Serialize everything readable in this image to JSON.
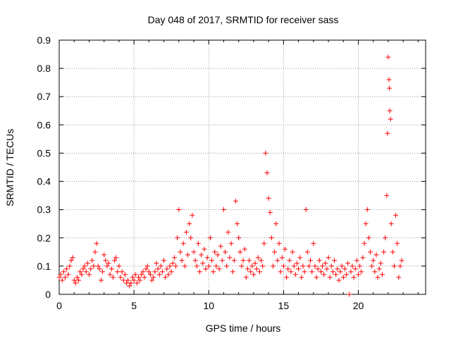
{
  "chart_data": {
    "type": "scatter",
    "title": "Day 048 of 2017, SRMTID for receiver sass",
    "xlabel": "GPS time / hours",
    "ylabel": "SRMTID / TECUs",
    "xlim": [
      0,
      24.5
    ],
    "ylim": [
      0,
      0.9
    ],
    "x_ticks": [
      0,
      5,
      10,
      15,
      20
    ],
    "x_tick_labels": [
      "0",
      "5",
      "10",
      "15",
      "20"
    ],
    "y_ticks": [
      0,
      0.1,
      0.2,
      0.3,
      0.4,
      0.5,
      0.6,
      0.7,
      0.8,
      0.9
    ],
    "y_tick_labels": [
      "0",
      "0.1",
      "0.2",
      "0.3",
      "0.4",
      "0.5",
      "0.6",
      "0.7",
      "0.8",
      "0.9"
    ],
    "grid": true,
    "marker": "plus",
    "color": "#ff0000",
    "series": [
      {
        "name": "SRMTID",
        "points": [
          [
            0.0,
            0.06
          ],
          [
            0.1,
            0.07
          ],
          [
            0.2,
            0.05
          ],
          [
            0.3,
            0.08
          ],
          [
            0.4,
            0.06
          ],
          [
            0.5,
            0.09
          ],
          [
            0.6,
            0.07
          ],
          [
            0.7,
            0.1
          ],
          [
            0.8,
            0.12
          ],
          [
            0.9,
            0.13
          ],
          [
            1.0,
            0.05
          ],
          [
            1.1,
            0.04
          ],
          [
            1.2,
            0.06
          ],
          [
            1.3,
            0.05
          ],
          [
            1.4,
            0.08
          ],
          [
            1.5,
            0.07
          ],
          [
            1.6,
            0.09
          ],
          [
            1.7,
            0.1
          ],
          [
            1.8,
            0.08
          ],
          [
            1.9,
            0.11
          ],
          [
            2.0,
            0.07
          ],
          [
            2.1,
            0.09
          ],
          [
            2.2,
            0.12
          ],
          [
            2.3,
            0.1
          ],
          [
            2.4,
            0.15
          ],
          [
            2.5,
            0.18
          ],
          [
            2.6,
            0.1
          ],
          [
            2.7,
            0.09
          ],
          [
            2.8,
            0.05
          ],
          [
            2.9,
            0.08
          ],
          [
            3.0,
            0.14
          ],
          [
            3.1,
            0.12
          ],
          [
            3.2,
            0.1
          ],
          [
            3.3,
            0.11
          ],
          [
            3.4,
            0.07
          ],
          [
            3.5,
            0.09
          ],
          [
            3.6,
            0.06
          ],
          [
            3.7,
            0.12
          ],
          [
            3.8,
            0.13
          ],
          [
            3.9,
            0.08
          ],
          [
            4.0,
            0.1
          ],
          [
            4.1,
            0.06
          ],
          [
            4.2,
            0.08
          ],
          [
            4.3,
            0.05
          ],
          [
            4.4,
            0.07
          ],
          [
            4.5,
            0.04
          ],
          [
            4.6,
            0.05
          ],
          [
            4.7,
            0.03
          ],
          [
            4.8,
            0.04
          ],
          [
            4.9,
            0.06
          ],
          [
            5.0,
            0.05
          ],
          [
            5.1,
            0.07
          ],
          [
            5.2,
            0.04
          ],
          [
            5.3,
            0.06
          ],
          [
            5.4,
            0.05
          ],
          [
            5.5,
            0.07
          ],
          [
            5.6,
            0.08
          ],
          [
            5.7,
            0.06
          ],
          [
            5.8,
            0.09
          ],
          [
            5.9,
            0.1
          ],
          [
            6.0,
            0.08
          ],
          [
            6.1,
            0.07
          ],
          [
            6.2,
            0.05
          ],
          [
            6.3,
            0.06
          ],
          [
            6.4,
            0.08
          ],
          [
            6.5,
            0.11
          ],
          [
            6.6,
            0.09
          ],
          [
            6.7,
            0.07
          ],
          [
            6.8,
            0.1
          ],
          [
            6.9,
            0.08
          ],
          [
            7.0,
            0.12
          ],
          [
            7.1,
            0.06
          ],
          [
            7.2,
            0.09
          ],
          [
            7.3,
            0.07
          ],
          [
            7.4,
            0.1
          ],
          [
            7.5,
            0.08
          ],
          [
            7.6,
            0.11
          ],
          [
            7.7,
            0.13
          ],
          [
            7.8,
            0.1
          ],
          [
            7.9,
            0.2
          ],
          [
            8.0,
            0.3
          ],
          [
            8.1,
            0.15
          ],
          [
            8.2,
            0.12
          ],
          [
            8.3,
            0.18
          ],
          [
            8.4,
            0.1
          ],
          [
            8.5,
            0.22
          ],
          [
            8.6,
            0.14
          ],
          [
            8.7,
            0.25
          ],
          [
            8.8,
            0.2
          ],
          [
            8.9,
            0.28
          ],
          [
            9.0,
            0.15
          ],
          [
            9.1,
            0.12
          ],
          [
            9.2,
            0.1
          ],
          [
            9.3,
            0.18
          ],
          [
            9.4,
            0.08
          ],
          [
            9.5,
            0.14
          ],
          [
            9.6,
            0.11
          ],
          [
            9.7,
            0.16
          ],
          [
            9.8,
            0.09
          ],
          [
            9.9,
            0.13
          ],
          [
            10.0,
            0.1
          ],
          [
            10.1,
            0.2
          ],
          [
            10.2,
            0.12
          ],
          [
            10.3,
            0.08
          ],
          [
            10.4,
            0.15
          ],
          [
            10.5,
            0.1
          ],
          [
            10.6,
            0.14
          ],
          [
            10.7,
            0.09
          ],
          [
            10.8,
            0.17
          ],
          [
            10.9,
            0.12
          ],
          [
            11.0,
            0.3
          ],
          [
            11.1,
            0.15
          ],
          [
            11.2,
            0.1
          ],
          [
            11.3,
            0.22
          ],
          [
            11.4,
            0.13
          ],
          [
            11.5,
            0.18
          ],
          [
            11.6,
            0.08
          ],
          [
            11.7,
            0.12
          ],
          [
            11.8,
            0.33
          ],
          [
            11.9,
            0.25
          ],
          [
            12.0,
            0.2
          ],
          [
            12.1,
            0.15
          ],
          [
            12.2,
            0.1
          ],
          [
            12.3,
            0.12
          ],
          [
            12.4,
            0.16
          ],
          [
            12.5,
            0.06
          ],
          [
            12.6,
            0.09
          ],
          [
            12.7,
            0.12
          ],
          [
            12.8,
            0.08
          ],
          [
            12.9,
            0.1
          ],
          [
            13.0,
            0.07
          ],
          [
            13.1,
            0.11
          ],
          [
            13.2,
            0.09
          ],
          [
            13.3,
            0.13
          ],
          [
            13.4,
            0.08
          ],
          [
            13.5,
            0.12
          ],
          [
            13.6,
            0.1
          ],
          [
            13.7,
            0.18
          ],
          [
            13.8,
            0.5
          ],
          [
            13.9,
            0.43
          ],
          [
            14.0,
            0.34
          ],
          [
            14.1,
            0.29
          ],
          [
            14.2,
            0.2
          ],
          [
            14.3,
            0.1
          ],
          [
            14.4,
            0.15
          ],
          [
            14.5,
            0.25
          ],
          [
            14.6,
            0.12
          ],
          [
            14.7,
            0.18
          ],
          [
            14.8,
            0.08
          ],
          [
            14.9,
            0.13
          ],
          [
            15.0,
            0.1
          ],
          [
            15.1,
            0.16
          ],
          [
            15.2,
            0.06
          ],
          [
            15.3,
            0.09
          ],
          [
            15.4,
            0.12
          ],
          [
            15.5,
            0.08
          ],
          [
            15.6,
            0.15
          ],
          [
            15.7,
            0.1
          ],
          [
            15.8,
            0.07
          ],
          [
            15.9,
            0.11
          ],
          [
            16.0,
            0.09
          ],
          [
            16.1,
            0.13
          ],
          [
            16.2,
            0.06
          ],
          [
            16.3,
            0.1
          ],
          [
            16.4,
            0.08
          ],
          [
            16.5,
            0.3
          ],
          [
            16.6,
            0.15
          ],
          [
            16.7,
            0.1
          ],
          [
            16.8,
            0.12
          ],
          [
            16.9,
            0.08
          ],
          [
            17.0,
            0.18
          ],
          [
            17.1,
            0.1
          ],
          [
            17.2,
            0.06
          ],
          [
            17.3,
            0.09
          ],
          [
            17.4,
            0.12
          ],
          [
            17.5,
            0.08
          ],
          [
            17.6,
            0.1
          ],
          [
            17.7,
            0.07
          ],
          [
            17.8,
            0.11
          ],
          [
            17.9,
            0.09
          ],
          [
            18.0,
            0.13
          ],
          [
            18.1,
            0.06
          ],
          [
            18.2,
            0.1
          ],
          [
            18.3,
            0.08
          ],
          [
            18.4,
            0.12
          ],
          [
            18.5,
            0.07
          ],
          [
            18.6,
            0.09
          ],
          [
            18.7,
            0.05
          ],
          [
            18.8,
            0.08
          ],
          [
            18.9,
            0.1
          ],
          [
            19.0,
            0.06
          ],
          [
            19.1,
            0.09
          ],
          [
            19.2,
            0.07
          ],
          [
            19.3,
            0.11
          ],
          [
            19.4,
            0.0
          ],
          [
            19.5,
            0.08
          ],
          [
            19.6,
            0.1
          ],
          [
            19.7,
            0.06
          ],
          [
            19.8,
            0.09
          ],
          [
            19.9,
            0.12
          ],
          [
            20.0,
            0.07
          ],
          [
            20.1,
            0.1
          ],
          [
            20.2,
            0.08
          ],
          [
            20.3,
            0.13
          ],
          [
            20.4,
            0.18
          ],
          [
            20.5,
            0.25
          ],
          [
            20.6,
            0.3
          ],
          [
            20.7,
            0.2
          ],
          [
            20.8,
            0.15
          ],
          [
            20.9,
            0.1
          ],
          [
            21.0,
            0.12
          ],
          [
            21.1,
            0.08
          ],
          [
            21.2,
            0.14
          ],
          [
            21.3,
            0.06
          ],
          [
            21.4,
            0.09
          ],
          [
            21.5,
            0.11
          ],
          [
            21.6,
            0.07
          ],
          [
            21.7,
            0.15
          ],
          [
            21.8,
            0.2
          ],
          [
            21.9,
            0.35
          ],
          [
            21.95,
            0.57
          ],
          [
            22.0,
            0.84
          ],
          [
            22.05,
            0.76
          ],
          [
            22.08,
            0.73
          ],
          [
            22.1,
            0.65
          ],
          [
            22.15,
            0.62
          ],
          [
            22.2,
            0.25
          ],
          [
            22.3,
            0.15
          ],
          [
            22.4,
            0.1
          ],
          [
            22.5,
            0.28
          ],
          [
            22.6,
            0.18
          ],
          [
            22.7,
            0.06
          ],
          [
            22.8,
            0.1
          ],
          [
            22.9,
            0.12
          ]
        ]
      }
    ]
  }
}
